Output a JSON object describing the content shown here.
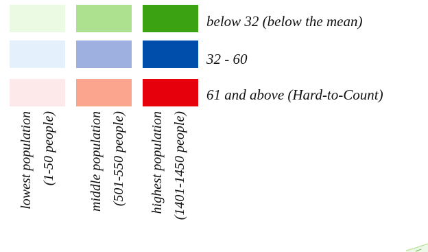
{
  "legend": {
    "rows": [
      {
        "label": "below 32 (below the mean)",
        "colors": [
          "#ebfae2",
          "#ade18f",
          "#3ba212"
        ]
      },
      {
        "label": "32 - 60",
        "colors": [
          "#e5f0fd",
          "#9eb0e0",
          "#004eab"
        ]
      },
      {
        "label": "61 and above (Hard-to-Count)",
        "colors": [
          "#fde8ea",
          "#fca58e",
          "#e6000c"
        ]
      }
    ],
    "columns": [
      {
        "line1": "lowest population",
        "line2": "(1-50 people)"
      },
      {
        "line1": "middle population",
        "line2": "(501-550 people)"
      },
      {
        "line1": "highest population",
        "line2": "(1401-1450 people)"
      }
    ]
  }
}
